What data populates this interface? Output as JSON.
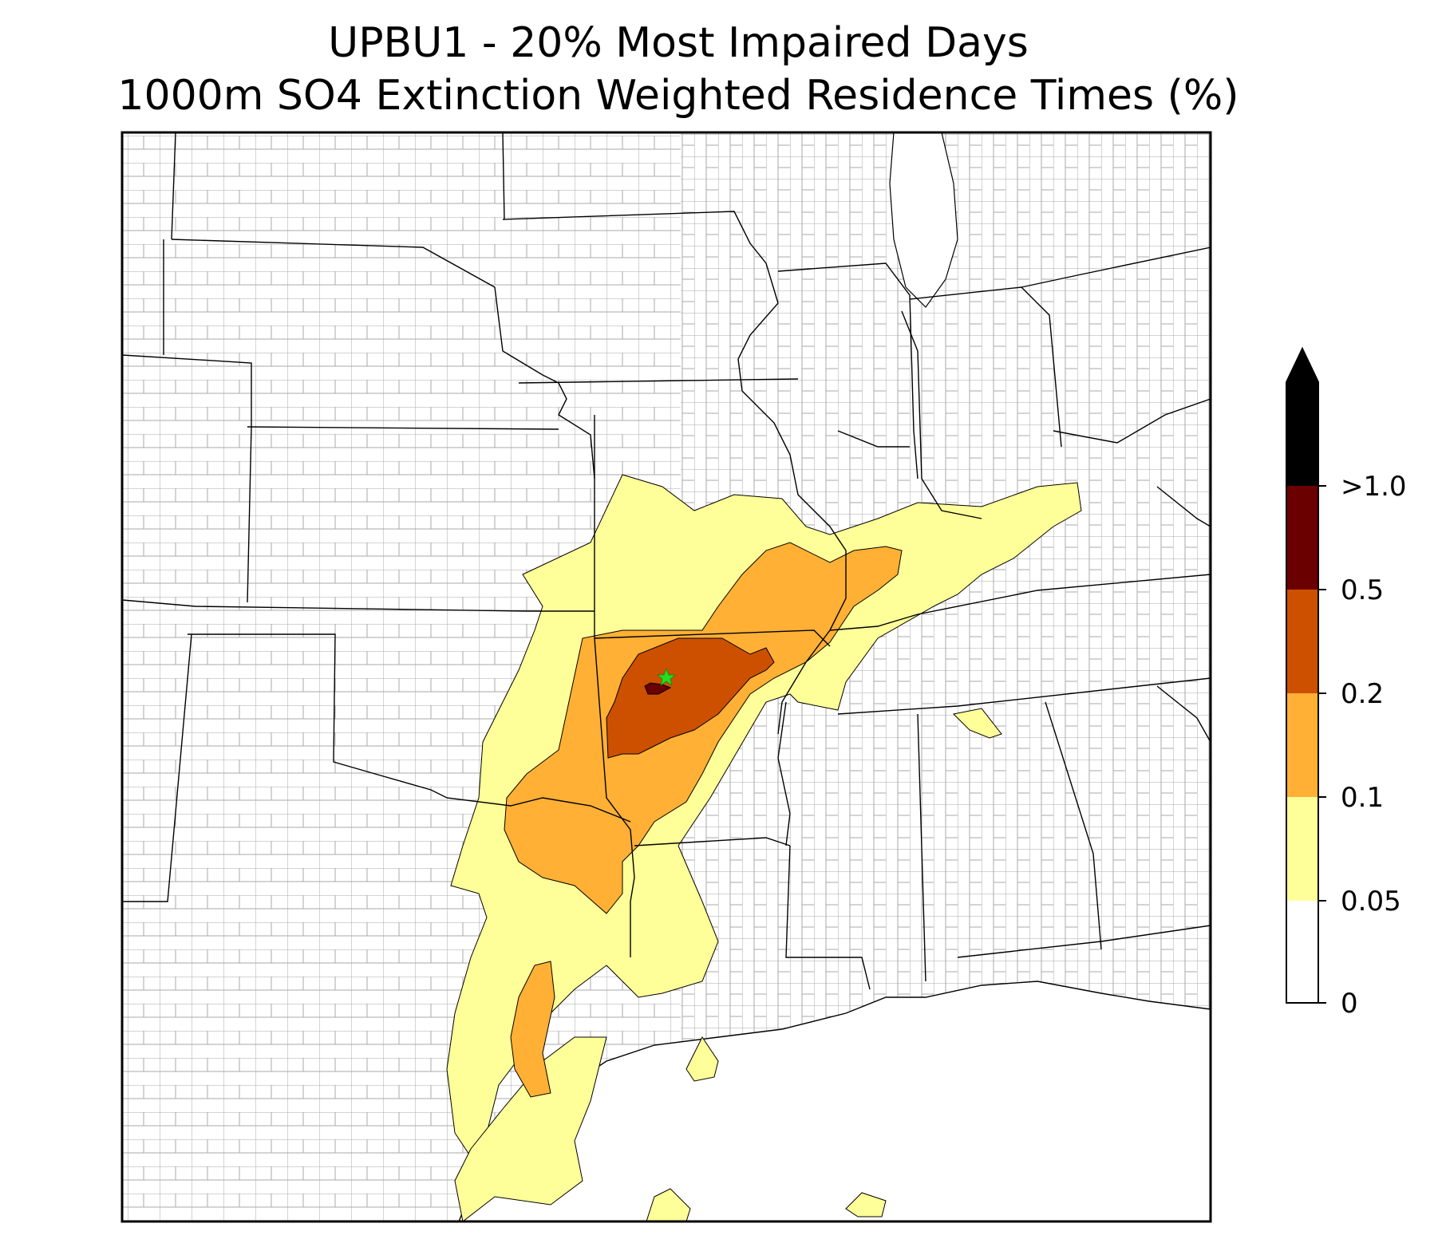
{
  "title": {
    "line1": "UPBU1 - 20% Most Impaired Days",
    "line2": "1000m SO4 Extinction Weighted Residence Times (%)"
  },
  "colorbar": {
    "extend": "max",
    "levels": [
      {
        "label": "0",
        "color": "#ffffff"
      },
      {
        "label": "0.05",
        "color": "#ffff99"
      },
      {
        "label": "0.1",
        "color": "#ffb035"
      },
      {
        "label": "0.2",
        "color": "#cc5000"
      },
      {
        "label": "0.5",
        "color": "#6b0000"
      },
      {
        "label": ">1.0",
        "color": "#000000"
      }
    ],
    "ticks": [
      "0",
      "0.05",
      "0.1",
      "0.2",
      "0.5",
      ">1.0"
    ]
  },
  "map": {
    "site": "UPBU1",
    "site_marker": "green-star",
    "site_color": "#22dd22",
    "county_line_color": "#999999",
    "state_line_color": "#000000",
    "zone_colors": {
      "level_005": "#ffff99",
      "level_01": "#ffb035",
      "level_02": "#cc5000",
      "level_05": "#6b0000"
    }
  }
}
